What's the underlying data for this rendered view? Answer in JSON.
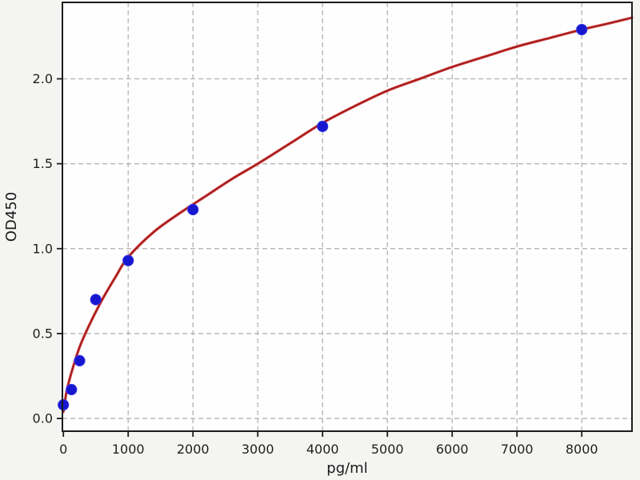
{
  "figure": {
    "background_color": "#f4f4f2",
    "plot_background_color": "#fefefe",
    "spine_color": "#1c1c1c",
    "grid_color": "#b3b3b3",
    "tick_color": "#1c1c1c",
    "text_color": "#202020"
  },
  "chart_data": {
    "type": "scatter",
    "title": "",
    "xlabel": "pg/ml",
    "ylabel": "OD450",
    "xlim": [
      -15,
      8775
    ],
    "ylim": [
      -0.075,
      2.45
    ],
    "x_ticks": [
      0,
      1000,
      2000,
      3000,
      4000,
      5000,
      6000,
      7000,
      8000
    ],
    "x_tick_labels": [
      "0",
      "1000",
      "2000",
      "3000",
      "4000",
      "5000",
      "6000",
      "7000",
      "8000"
    ],
    "y_ticks": [
      0.0,
      0.5,
      1.0,
      1.5,
      2.0
    ],
    "y_tick_labels": [
      "0.0",
      "0.5",
      "1.0",
      "1.5",
      "2.0"
    ],
    "grid": "dashed, both axes",
    "legend": "none",
    "series": [
      {
        "name": "standard-points",
        "type": "scatter",
        "marker": "circle",
        "marker_color": "#1717d0",
        "marker_edge_color": "#3434e6",
        "points": [
          {
            "x": 0,
            "y": 0.08
          },
          {
            "x": 125,
            "y": 0.17
          },
          {
            "x": 250,
            "y": 0.34
          },
          {
            "x": 500,
            "y": 0.7
          },
          {
            "x": 1000,
            "y": 0.93
          },
          {
            "x": 2000,
            "y": 1.23
          },
          {
            "x": 4000,
            "y": 1.72
          },
          {
            "x": 8000,
            "y": 2.29
          }
        ]
      },
      {
        "name": "fit-curve",
        "type": "line",
        "line_color": "#d05050",
        "line_core_color": "#a31414",
        "points": [
          [
            0,
            0.04
          ],
          [
            25,
            0.1
          ],
          [
            50,
            0.16
          ],
          [
            125,
            0.27
          ],
          [
            250,
            0.42
          ],
          [
            400,
            0.55
          ],
          [
            600,
            0.7
          ],
          [
            800,
            0.83
          ],
          [
            1000,
            0.95
          ],
          [
            1400,
            1.1
          ],
          [
            1800,
            1.21
          ],
          [
            2200,
            1.31
          ],
          [
            2600,
            1.41
          ],
          [
            3000,
            1.5
          ],
          [
            3500,
            1.62
          ],
          [
            4000,
            1.74
          ],
          [
            4500,
            1.84
          ],
          [
            5000,
            1.93
          ],
          [
            5500,
            2.0
          ],
          [
            6000,
            2.07
          ],
          [
            6500,
            2.13
          ],
          [
            7000,
            2.19
          ],
          [
            7500,
            2.24
          ],
          [
            8000,
            2.29
          ],
          [
            8400,
            2.325
          ],
          [
            8775,
            2.36
          ]
        ]
      }
    ]
  }
}
